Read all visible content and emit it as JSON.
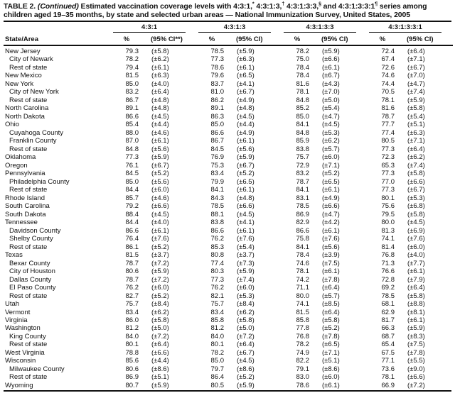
{
  "title": {
    "segs": [
      "TABLE 2. ",
      "(Continued)",
      " Estimated vaccination coverage levels with 4:3:1,",
      "*",
      " 4:3:1:3,",
      "†",
      " 4:3:1:3:3,",
      "§",
      " and 4:3:1:3:3:1",
      "¶",
      " series among children aged 19–35 months, by state and selected urban areas — National Immunization Survey, United States, 2005"
    ]
  },
  "table": {
    "state_area_header": "State/Area",
    "col_groups": [
      {
        "label": "4:3:1",
        "pct": "%",
        "ci": "(95% CI**)"
      },
      {
        "label": "4:3:1:3",
        "pct": "%",
        "ci": "(95% CI)"
      },
      {
        "label": "4:3:1:3:3",
        "pct": "%",
        "ci": "(95% CI)"
      },
      {
        "label": "4:3:1:3:3:1",
        "pct": "%",
        "ci": "(95% CI)"
      }
    ],
    "rows": [
      {
        "name": "New Jersey",
        "indent": false,
        "values": [
          "79.3",
          "(±5.8)",
          "78.5",
          "(±5.9)",
          "78.2",
          "(±5.9)",
          "72.4",
          "(±6.4)"
        ]
      },
      {
        "name": "City of Newark",
        "indent": true,
        "values": [
          "78.2",
          "(±6.2)",
          "77.3",
          "(±6.3)",
          "75.0",
          "(±6.6)",
          "67.4",
          "(±7.1)"
        ]
      },
      {
        "name": "Rest of state",
        "indent": true,
        "values": [
          "79.4",
          "(±6.1)",
          "78.6",
          "(±6.1)",
          "78.4",
          "(±6.1)",
          "72.6",
          "(±6.7)"
        ]
      },
      {
        "name": "New Mexico",
        "indent": false,
        "values": [
          "81.5",
          "(±6.3)",
          "79.6",
          "(±6.5)",
          "78.4",
          "(±6.7)",
          "74.6",
          "(±7.0)"
        ]
      },
      {
        "name": "New York",
        "indent": false,
        "values": [
          "85.0",
          "(±4.0)",
          "83.7",
          "(±4.1)",
          "81.6",
          "(±4.3)",
          "74.4",
          "(±4.7)"
        ]
      },
      {
        "name": "City of New York",
        "indent": true,
        "values": [
          "83.2",
          "(±6.4)",
          "81.0",
          "(±6.7)",
          "78.1",
          "(±7.0)",
          "70.5",
          "(±7.4)"
        ]
      },
      {
        "name": "Rest of state",
        "indent": true,
        "values": [
          "86.7",
          "(±4.8)",
          "86.2",
          "(±4.9)",
          "84.8",
          "(±5.0)",
          "78.1",
          "(±5.9)"
        ]
      },
      {
        "name": "North Carolina",
        "indent": false,
        "values": [
          "89.1",
          "(±4.8)",
          "89.1",
          "(±4.8)",
          "85.2",
          "(±5.4)",
          "81.6",
          "(±5.8)"
        ]
      },
      {
        "name": "North Dakota",
        "indent": false,
        "values": [
          "86.6",
          "(±4.5)",
          "86.3",
          "(±4.5)",
          "85.0",
          "(±4.7)",
          "78.7",
          "(±5.4)"
        ]
      },
      {
        "name": "Ohio",
        "indent": false,
        "values": [
          "85.4",
          "(±4.4)",
          "85.0",
          "(±4.4)",
          "84.1",
          "(±4.5)",
          "77.7",
          "(±5.1)"
        ]
      },
      {
        "name": "Cuyahoga County",
        "indent": true,
        "values": [
          "88.0",
          "(±4.6)",
          "86.6",
          "(±4.9)",
          "84.8",
          "(±5.3)",
          "77.4",
          "(±6.3)"
        ]
      },
      {
        "name": "Franklin County",
        "indent": true,
        "values": [
          "87.0",
          "(±6.1)",
          "86.7",
          "(±6.1)",
          "85.9",
          "(±6.2)",
          "80.5",
          "(±7.1)"
        ]
      },
      {
        "name": "Rest of state",
        "indent": true,
        "values": [
          "84.8",
          "(±5.6)",
          "84.5",
          "(±5.6)",
          "83.8",
          "(±5.7)",
          "77.3",
          "(±6.4)"
        ]
      },
      {
        "name": "Oklahoma",
        "indent": false,
        "values": [
          "77.3",
          "(±5.9)",
          "76.9",
          "(±5.9)",
          "75.7",
          "(±6.0)",
          "72.3",
          "(±6.2)"
        ]
      },
      {
        "name": "Oregon",
        "indent": false,
        "values": [
          "76.1",
          "(±6.7)",
          "75.3",
          "(±6.7)",
          "72.9",
          "(±7.1)",
          "65.3",
          "(±7.4)"
        ]
      },
      {
        "name": "Pennsylvania",
        "indent": false,
        "values": [
          "84.5",
          "(±5.2)",
          "83.4",
          "(±5.2)",
          "83.2",
          "(±5.2)",
          "77.3",
          "(±5.8)"
        ]
      },
      {
        "name": "Philadelphia County",
        "indent": true,
        "values": [
          "85.0",
          "(±5.6)",
          "79.9",
          "(±6.5)",
          "78.7",
          "(±6.5)",
          "77.0",
          "(±6.6)"
        ]
      },
      {
        "name": "Rest of state",
        "indent": true,
        "values": [
          "84.4",
          "(±6.0)",
          "84.1",
          "(±6.1)",
          "84.1",
          "(±6.1)",
          "77.3",
          "(±6.7)"
        ]
      },
      {
        "name": "Rhode Island",
        "indent": false,
        "values": [
          "85.7",
          "(±4.6)",
          "84.3",
          "(±4.8)",
          "83.1",
          "(±4.9)",
          "80.1",
          "(±5.3)"
        ]
      },
      {
        "name": "South Carolina",
        "indent": false,
        "values": [
          "79.2",
          "(±6.6)",
          "78.5",
          "(±6.6)",
          "78.5",
          "(±6.6)",
          "75.6",
          "(±6.8)"
        ]
      },
      {
        "name": "South Dakota",
        "indent": false,
        "values": [
          "88.4",
          "(±4.5)",
          "88.1",
          "(±4.5)",
          "86.9",
          "(±4.7)",
          "79.5",
          "(±5.8)"
        ]
      },
      {
        "name": "Tennessee",
        "indent": false,
        "values": [
          "84.4",
          "(±4.0)",
          "83.8",
          "(±4.1)",
          "82.9",
          "(±4.2)",
          "80.0",
          "(±4.5)"
        ]
      },
      {
        "name": "Davidson County",
        "indent": true,
        "values": [
          "86.6",
          "(±6.1)",
          "86.6",
          "(±6.1)",
          "86.6",
          "(±6.1)",
          "81.3",
          "(±6.9)"
        ]
      },
      {
        "name": "Shelby County",
        "indent": true,
        "values": [
          "76.4",
          "(±7.6)",
          "76.2",
          "(±7.6)",
          "75.8",
          "(±7.6)",
          "74.1",
          "(±7.6)"
        ]
      },
      {
        "name": "Rest of state",
        "indent": true,
        "values": [
          "86.1",
          "(±5.2)",
          "85.3",
          "(±5.4)",
          "84.1",
          "(±5.6)",
          "81.4",
          "(±6.0)"
        ]
      },
      {
        "name": "Texas",
        "indent": false,
        "values": [
          "81.5",
          "(±3.7)",
          "80.8",
          "(±3.7)",
          "78.4",
          "(±3.9)",
          "76.8",
          "(±4.0)"
        ]
      },
      {
        "name": "Bexar County",
        "indent": true,
        "values": [
          "78.7",
          "(±7.2)",
          "77.4",
          "(±7.3)",
          "74.6",
          "(±7.5)",
          "71.3",
          "(±7.7)"
        ]
      },
      {
        "name": "City of Houston",
        "indent": true,
        "values": [
          "80.6",
          "(±5.9)",
          "80.3",
          "(±5.9)",
          "78.1",
          "(±6.1)",
          "76.6",
          "(±6.1)"
        ]
      },
      {
        "name": "Dallas County",
        "indent": true,
        "values": [
          "78.7",
          "(±7.2)",
          "77.3",
          "(±7.4)",
          "74.2",
          "(±7.8)",
          "72.8",
          "(±7.9)"
        ]
      },
      {
        "name": "El Paso County",
        "indent": true,
        "values": [
          "76.2",
          "(±6.0)",
          "76.2",
          "(±6.0)",
          "71.1",
          "(±6.4)",
          "69.2",
          "(±6.4)"
        ]
      },
      {
        "name": "Rest of state",
        "indent": true,
        "values": [
          "82.7",
          "(±5.2)",
          "82.1",
          "(±5.3)",
          "80.0",
          "(±5.7)",
          "78.5",
          "(±5.8)"
        ]
      },
      {
        "name": "Utah",
        "indent": false,
        "values": [
          "75.7",
          "(±8.4)",
          "75.7",
          "(±8.4)",
          "74.1",
          "(±8.5)",
          "68.1",
          "(±8.8)"
        ]
      },
      {
        "name": "Vermont",
        "indent": false,
        "values": [
          "83.4",
          "(±6.2)",
          "83.4",
          "(±6.2)",
          "81.5",
          "(±6.4)",
          "62.9",
          "(±8.1)"
        ]
      },
      {
        "name": "Virginia",
        "indent": false,
        "values": [
          "86.0",
          "(±5.8)",
          "85.8",
          "(±5.8)",
          "85.8",
          "(±5.8)",
          "81.7",
          "(±6.1)"
        ]
      },
      {
        "name": "Washington",
        "indent": false,
        "values": [
          "81.2",
          "(±5.0)",
          "81.2",
          "(±5.0)",
          "77.8",
          "(±5.2)",
          "66.3",
          "(±5.9)"
        ]
      },
      {
        "name": "King County",
        "indent": true,
        "values": [
          "84.0",
          "(±7.2)",
          "84.0",
          "(±7.2)",
          "76.8",
          "(±7.8)",
          "68.7",
          "(±8.3)"
        ]
      },
      {
        "name": "Rest of state",
        "indent": true,
        "values": [
          "80.1",
          "(±6.4)",
          "80.1",
          "(±6.4)",
          "78.2",
          "(±6.5)",
          "65.4",
          "(±7.5)"
        ]
      },
      {
        "name": "West Virginia",
        "indent": false,
        "values": [
          "78.8",
          "(±6.6)",
          "78.2",
          "(±6.7)",
          "74.9",
          "(±7.1)",
          "67.5",
          "(±7.8)"
        ]
      },
      {
        "name": "Wisconsin",
        "indent": false,
        "values": [
          "85.6",
          "(±4.4)",
          "85.0",
          "(±4.5)",
          "82.2",
          "(±5.1)",
          "77.1",
          "(±5.5)"
        ]
      },
      {
        "name": "Milwaukee County",
        "indent": true,
        "values": [
          "80.6",
          "(±8.6)",
          "79.7",
          "(±8.6)",
          "79.1",
          "(±8.6)",
          "73.6",
          "(±9.0)"
        ]
      },
      {
        "name": "Rest of state",
        "indent": true,
        "values": [
          "86.9",
          "(±5.1)",
          "86.4",
          "(±5.2)",
          "83.0",
          "(±6.0)",
          "78.1",
          "(±6.6)"
        ]
      },
      {
        "name": "Wyoming",
        "indent": false,
        "values": [
          "80.7",
          "(±5.9)",
          "80.5",
          "(±5.9)",
          "78.6",
          "(±6.1)",
          "66.9",
          "(±7.2)"
        ]
      }
    ]
  }
}
